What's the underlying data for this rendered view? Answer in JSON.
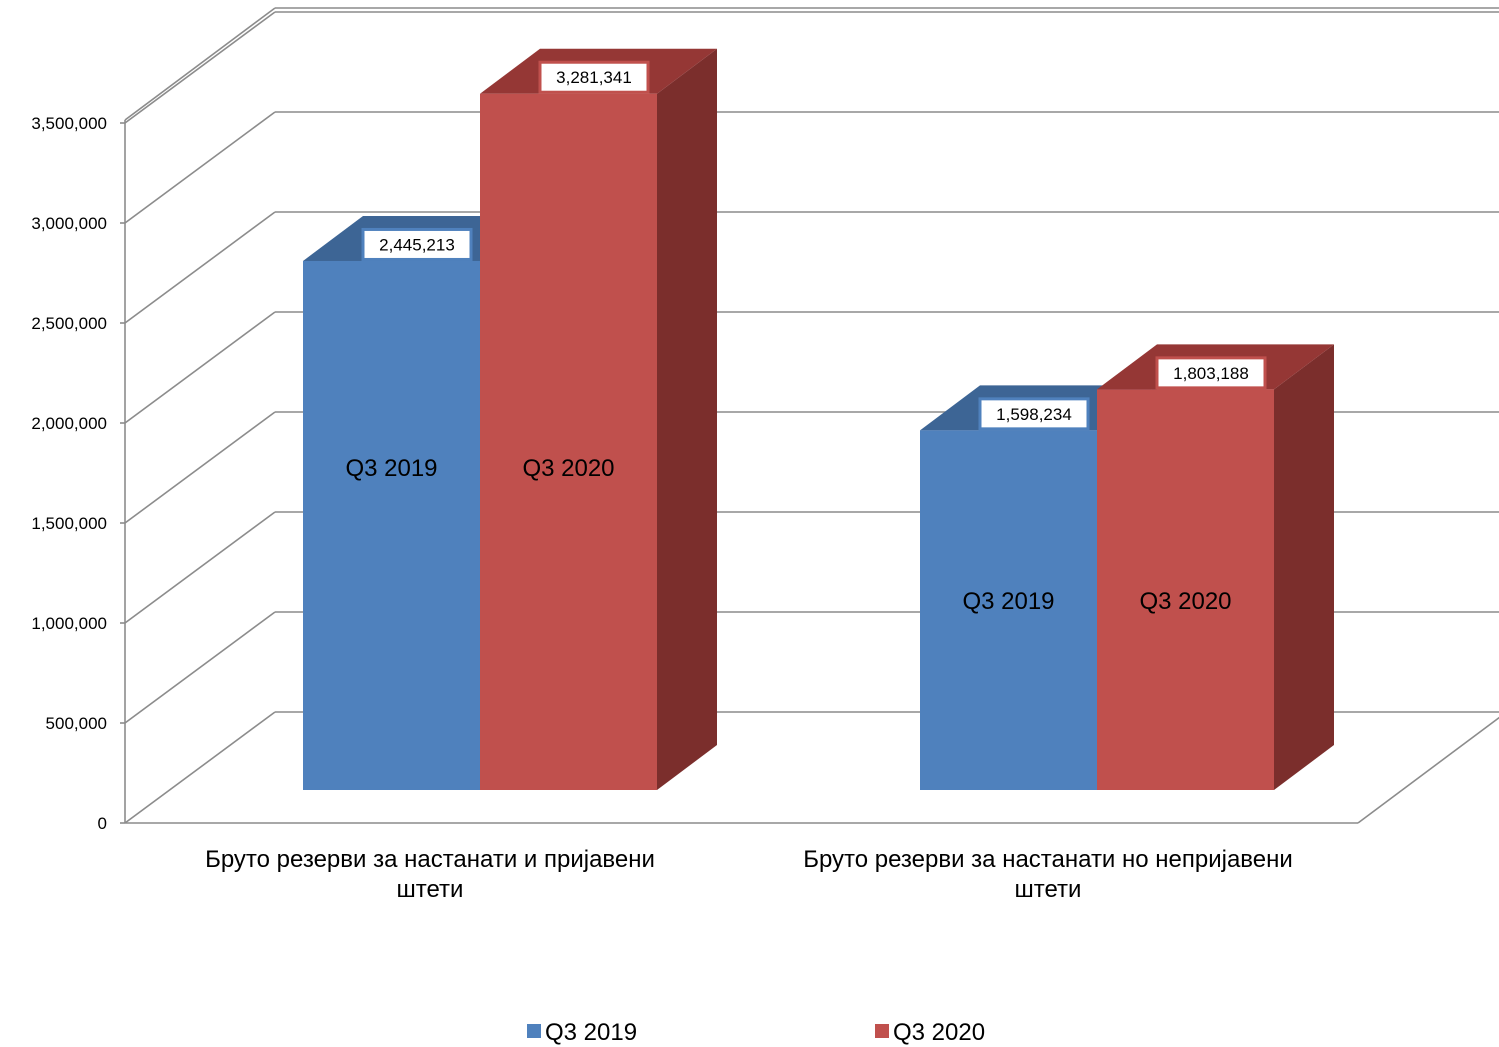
{
  "chart_data": {
    "type": "bar",
    "categories": [
      [
        "Бруто резерви за настанати и пријавени",
        "штети"
      ],
      [
        "Бруто резерви за настанати но непријавени",
        "штети"
      ]
    ],
    "series": [
      {
        "name": "Q3 2019",
        "color": "#4F81BD",
        "top_color": "#3D6595",
        "side_color": "#385D8A",
        "values": [
          2445213,
          1598234
        ]
      },
      {
        "name": "Q3 2020",
        "color": "#C0504D",
        "top_color": "#953735",
        "side_color": "#7B2E2C",
        "values": [
          3281341,
          1803188
        ]
      }
    ],
    "value_labels": [
      [
        "2,445,213",
        "1,598,234"
      ],
      [
        "3,281,341",
        "1,803,188"
      ]
    ],
    "y_ticks": [
      "0",
      "500,000",
      "1,000,000",
      "1,500,000",
      "2,000,000",
      "2,500,000",
      "3,000,000",
      "3,500,000"
    ],
    "ylim": [
      0,
      3500000
    ],
    "grid": true,
    "legend": "bottom",
    "style": "3d-clustered-column"
  }
}
